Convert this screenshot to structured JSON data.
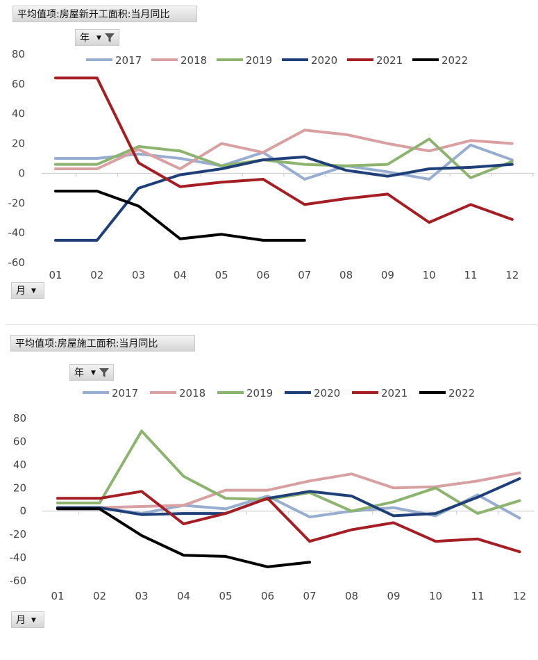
{
  "charts": [
    {
      "title": "平均值项:房屋新开工面积:当月同比",
      "filter_label": "年",
      "row_label": "月"
    },
    {
      "title": "平均值项:房屋施工面积:当月同比",
      "filter_label": "年",
      "row_label": "月"
    }
  ],
  "chart_data": [
    {
      "type": "line",
      "title": "平均值项:房屋新开工面积:当月同比",
      "categories": [
        "01",
        "02",
        "03",
        "04",
        "05",
        "06",
        "07",
        "08",
        "09",
        "10",
        "11",
        "12"
      ],
      "ylim": [
        -60,
        80
      ],
      "yticks": [
        80,
        60,
        40,
        20,
        0,
        -20,
        -40,
        -60
      ],
      "legend_position": "top",
      "series": [
        {
          "name": "2017",
          "color": "#98aed0",
          "values": [
            10,
            10,
            13,
            10,
            5,
            14,
            -4,
            5,
            1,
            -4,
            19,
            9
          ]
        },
        {
          "name": "2018",
          "color": "#d9a0a2",
          "values": [
            3,
            3,
            16,
            3,
            20,
            14,
            29,
            26,
            20,
            15,
            22,
            20
          ]
        },
        {
          "name": "2019",
          "color": "#8db46f",
          "values": [
            6,
            6,
            18,
            15,
            5,
            9,
            6,
            5,
            6,
            23,
            -3,
            8
          ]
        },
        {
          "name": "2020",
          "color": "#1f3f78",
          "values": [
            -45,
            -45,
            -10,
            -1,
            3,
            9,
            11,
            2,
            -2,
            3,
            4,
            6
          ]
        },
        {
          "name": "2021",
          "color": "#a41e23",
          "values": [
            64,
            64,
            7,
            -9,
            -6,
            -4,
            -21,
            -17,
            -14,
            -33,
            -21,
            -31
          ]
        },
        {
          "name": "2022",
          "color": "#000000",
          "values": [
            -12,
            -12,
            -22,
            -44,
            -41,
            -45,
            -45,
            null,
            null,
            null,
            null,
            null
          ]
        }
      ]
    },
    {
      "type": "line",
      "title": "平均值项:房屋施工面积:当月同比",
      "categories": [
        "01",
        "02",
        "03",
        "04",
        "05",
        "06",
        "07",
        "08",
        "09",
        "10",
        "11",
        "12"
      ],
      "ylim": [
        -60,
        80
      ],
      "yticks": [
        80,
        60,
        40,
        20,
        0,
        -20,
        -40,
        -60
      ],
      "legend_position": "top",
      "series": [
        {
          "name": "2017",
          "color": "#98aed0",
          "values": [
            3,
            3,
            -2,
            5,
            2,
            13,
            -5,
            0,
            3,
            -4,
            14,
            -6
          ]
        },
        {
          "name": "2018",
          "color": "#d9a0a2",
          "values": [
            3,
            3,
            4,
            5,
            18,
            18,
            26,
            32,
            20,
            21,
            26,
            33
          ]
        },
        {
          "name": "2019",
          "color": "#8db46f",
          "values": [
            7,
            7,
            69,
            30,
            11,
            10,
            16,
            0,
            8,
            20,
            -2,
            9
          ]
        },
        {
          "name": "2020",
          "color": "#1f3f78",
          "values": [
            3,
            3,
            -3,
            -2,
            -2,
            11,
            17,
            13,
            -4,
            -2,
            12,
            28
          ]
        },
        {
          "name": "2021",
          "color": "#a41e23",
          "values": [
            11,
            11,
            17,
            -11,
            -2,
            11,
            -26,
            -16,
            -10,
            -26,
            -24,
            -35
          ]
        },
        {
          "name": "2022",
          "color": "#000000",
          "values": [
            2,
            2,
            -21,
            -38,
            -39,
            -48,
            -44,
            null,
            null,
            null,
            null,
            null
          ]
        }
      ]
    }
  ]
}
